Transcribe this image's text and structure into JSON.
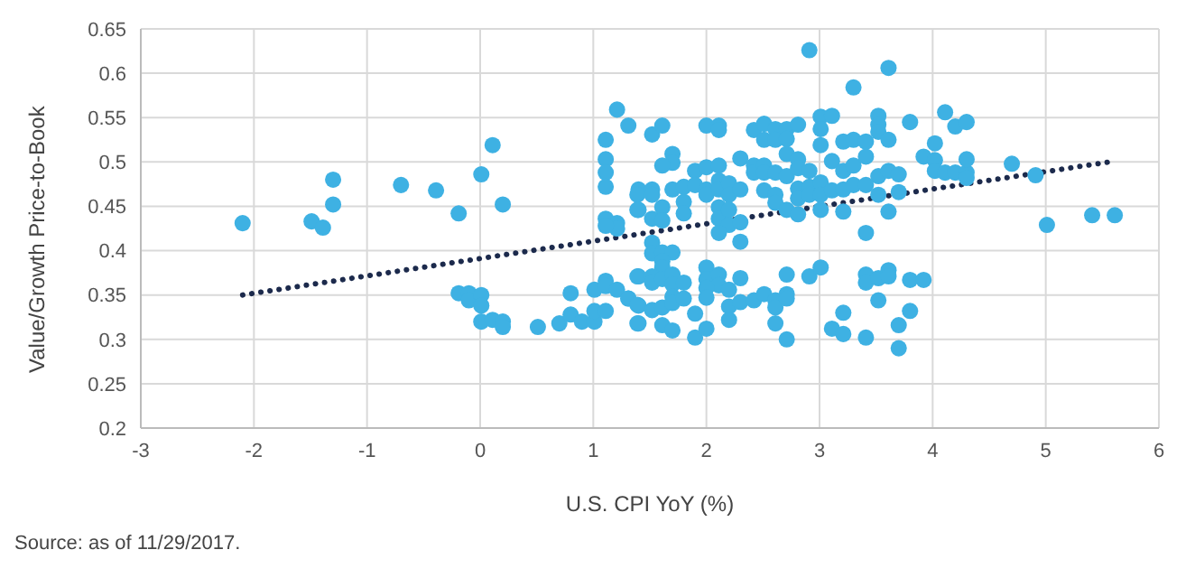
{
  "chart_data": {
    "type": "scatter",
    "xlabel": "U.S. CPI YoY (%)",
    "ylabel": "Value/Growth Price-to-Book",
    "xlim": [
      -3,
      6
    ],
    "xticks": [
      -3,
      -2,
      -1,
      0,
      1,
      2,
      3,
      4,
      5,
      6
    ],
    "ylim": [
      0.2,
      0.65
    ],
    "yticks": [
      0.2,
      0.25,
      0.3,
      0.35,
      0.4,
      0.45,
      0.5,
      0.55,
      0.6,
      0.65
    ],
    "grid": true,
    "annotations": [
      "Source: as of 11/29/2017."
    ],
    "series": [
      {
        "marker": "circle",
        "color": "#3eb1e3",
        "x": [
          -2.1,
          -1.49,
          -1.39,
          -1.3,
          -1.3,
          -0.7,
          -0.39,
          -0.19,
          0.01,
          0.11,
          0.2,
          -0.19,
          -0.1,
          -0.1,
          0.01,
          0.01,
          0.01,
          0.11,
          0.2,
          0.2,
          0.51,
          0.7,
          0.8,
          0.8,
          0.9,
          1.01,
          1.01,
          1.01,
          1.11,
          1.11,
          1.11,
          1.21,
          1.31,
          1.4,
          1.4,
          1.4,
          1.11,
          1.11,
          1.11,
          1.11,
          1.21,
          1.31,
          1.11,
          1.21,
          1.21,
          1.11,
          1.4,
          1.4,
          2.91,
          3.61,
          3.3,
          1.52,
          1.61,
          2.0,
          2.11,
          2.11,
          2.42,
          2.51,
          2.51,
          2.61,
          2.61,
          2.71,
          2.71,
          2.81,
          3.01,
          3.11,
          3.01,
          3.01,
          3.21,
          3.3,
          3.41,
          3.52,
          3.52,
          3.52,
          3.61,
          3.8,
          4.11,
          4.2,
          4.3,
          4.02,
          1.7,
          1.7,
          1.61,
          1.9,
          2.0,
          2.11,
          2.3,
          2.42,
          2.42,
          2.51,
          2.51,
          2.61,
          2.71,
          2.71,
          2.81,
          2.81,
          2.91,
          3.11,
          3.21,
          3.3,
          3.41,
          3.52,
          3.61,
          3.7,
          3.92,
          4.02,
          4.02,
          4.11,
          4.2,
          4.3,
          4.3,
          4.3,
          4.7,
          4.91,
          5.01,
          5.41,
          5.61,
          1.39,
          1.52,
          1.52,
          1.7,
          1.8,
          1.8,
          1.9,
          2.0,
          2.0,
          2.11,
          2.11,
          2.2,
          2.2,
          2.3,
          2.51,
          2.61,
          2.61,
          2.81,
          2.81,
          2.91,
          2.91,
          3.01,
          3.01,
          3.11,
          3.21,
          3.3,
          3.41,
          3.52,
          3.7,
          1.39,
          1.52,
          1.61,
          1.61,
          1.8,
          2.11,
          2.11,
          2.2,
          2.2,
          2.11,
          2.3,
          2.71,
          2.81,
          3.01,
          3.21,
          3.61,
          2.3,
          3.41,
          1.52,
          1.52,
          1.61,
          1.7,
          1.61,
          1.61,
          1.39,
          1.52,
          1.52,
          1.61,
          1.7,
          1.7,
          1.8,
          2.0,
          2.0,
          2.11,
          2.11,
          2.2,
          2.0,
          2.3,
          2.71,
          2.91,
          3.01,
          3.41,
          3.41,
          3.52,
          3.61,
          3.61,
          3.8,
          3.92,
          1.31,
          1.39,
          1.52,
          1.61,
          1.7,
          1.7,
          1.8,
          2.0,
          2.2,
          2.3,
          2.42,
          2.51,
          2.61,
          2.61,
          2.71,
          2.71,
          3.52,
          3.8,
          3.21,
          1.39,
          1.61,
          1.7,
          1.9,
          1.9,
          2.0,
          2.2,
          2.61,
          2.71,
          3.11,
          3.21,
          3.41,
          3.7,
          3.7
        ],
        "values": [
          0.431,
          0.433,
          0.426,
          0.48,
          0.452,
          0.474,
          0.468,
          0.442,
          0.486,
          0.519,
          0.452,
          0.352,
          0.352,
          0.344,
          0.35,
          0.338,
          0.32,
          0.322,
          0.32,
          0.314,
          0.314,
          0.318,
          0.328,
          0.352,
          0.32,
          0.32,
          0.332,
          0.356,
          0.332,
          0.366,
          0.36,
          0.356,
          0.346,
          0.338,
          0.318,
          0.371,
          0.525,
          0.503,
          0.488,
          0.472,
          0.559,
          0.541,
          0.436,
          0.431,
          0.425,
          0.428,
          0.446,
          0.469,
          0.626,
          0.606,
          0.584,
          0.531,
          0.541,
          0.541,
          0.541,
          0.536,
          0.536,
          0.543,
          0.525,
          0.537,
          0.525,
          0.537,
          0.526,
          0.542,
          0.551,
          0.552,
          0.537,
          0.519,
          0.523,
          0.525,
          0.523,
          0.552,
          0.542,
          0.534,
          0.525,
          0.545,
          0.556,
          0.54,
          0.545,
          0.521,
          0.509,
          0.499,
          0.496,
          0.49,
          0.494,
          0.496,
          0.504,
          0.496,
          0.488,
          0.496,
          0.488,
          0.488,
          0.509,
          0.484,
          0.503,
          0.493,
          0.49,
          0.501,
          0.49,
          0.496,
          0.506,
          0.484,
          0.49,
          0.486,
          0.506,
          0.502,
          0.49,
          0.488,
          0.488,
          0.488,
          0.503,
          0.482,
          0.498,
          0.485,
          0.429,
          0.44,
          0.44,
          0.463,
          0.469,
          0.463,
          0.469,
          0.472,
          0.455,
          0.474,
          0.469,
          0.463,
          0.479,
          0.469,
          0.476,
          0.463,
          0.469,
          0.468,
          0.463,
          0.454,
          0.47,
          0.459,
          0.472,
          0.463,
          0.477,
          0.463,
          0.468,
          0.469,
          0.474,
          0.474,
          0.463,
          0.466,
          0.446,
          0.436,
          0.449,
          0.434,
          0.442,
          0.449,
          0.436,
          0.446,
          0.429,
          0.42,
          0.432,
          0.446,
          0.441,
          0.446,
          0.444,
          0.444,
          0.41,
          0.42,
          0.409,
          0.397,
          0.398,
          0.398,
          0.388,
          0.381,
          0.371,
          0.371,
          0.364,
          0.368,
          0.373,
          0.362,
          0.364,
          0.381,
          0.368,
          0.373,
          0.361,
          0.356,
          0.358,
          0.369,
          0.373,
          0.371,
          0.381,
          0.373,
          0.364,
          0.369,
          0.378,
          0.371,
          0.367,
          0.367,
          0.346,
          0.339,
          0.333,
          0.336,
          0.348,
          0.341,
          0.346,
          0.347,
          0.337,
          0.342,
          0.344,
          0.351,
          0.344,
          0.336,
          0.351,
          0.346,
          0.344,
          0.332,
          0.33,
          0.318,
          0.316,
          0.31,
          0.302,
          0.329,
          0.312,
          0.322,
          0.318,
          0.3,
          0.312,
          0.306,
          0.302,
          0.316,
          0.29
        ]
      },
      {
        "type": "line",
        "marker": "none",
        "line_style": "dotted",
        "color": "#1c2a4c",
        "x": [
          -2.1,
          5.56
        ],
        "values": [
          0.35,
          0.5
        ]
      }
    ]
  }
}
